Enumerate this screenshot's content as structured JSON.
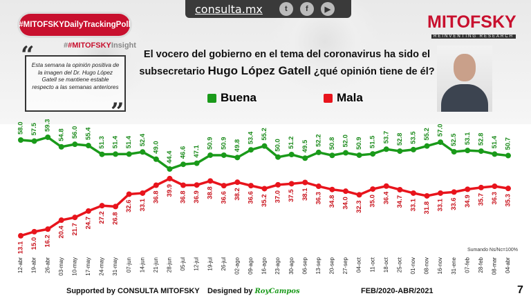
{
  "header": {
    "site": "consulta.mx",
    "social_icons": [
      "twitter-icon",
      "facebook-icon",
      "youtube-icon"
    ],
    "hashtag": "#MITOFSKYDailyTrackingPoll",
    "insight_brand": "#MITOFSKY",
    "insight_suffix": "Insight",
    "logo": "MITOFSKY",
    "logo_tagline": "REINVENTING RESEARCH"
  },
  "quote": "Esta semana la opinión positiva de la imagen del Dr. Hugo López Gatell se mantiene estable respecto a las semanas anteriores",
  "title": {
    "line1": "El vocero del gobierno en el tema del coronavirus ha sido el",
    "line2_pre": "subsecretario ",
    "line2_name": "Hugo López Gatell",
    "line2_post": " ¿qué opinión tiene de él?"
  },
  "note": "Sumando Ns/Nc=100%",
  "footer": {
    "supported": "Supported by  CONSULTA  MITOFSKY",
    "designed": "Designed by",
    "designer": "RoyCampos",
    "period": "FEB/2020-ABR/2021",
    "page": "7"
  },
  "chart_data": {
    "type": "line",
    "categories": [
      "12-abr",
      "19-abr",
      "26-abr",
      "03-may",
      "10-may",
      "17-may",
      "24-may",
      "31-may",
      "07-jun",
      "14-jun",
      "21-jun",
      "28-jun",
      "05-jul",
      "12-jul",
      "19-jul",
      "26-jul",
      "02-ago",
      "09-ago",
      "16-ago",
      "23-ago",
      "30-ago",
      "06-sep",
      "13-sep",
      "20-sep",
      "27-sep",
      "04-oct",
      "11-oct",
      "18-oct",
      "25-oct",
      "01-nov",
      "08-nov",
      "16-nov",
      "31-ene",
      "07-feb",
      "28-feb",
      "08-mar",
      "04-abr"
    ],
    "series": [
      {
        "name": "Buena",
        "color": "#1a9a1a",
        "values": [
          58.0,
          57.5,
          59.3,
          54.8,
          56.0,
          55.4,
          51.3,
          51.4,
          51.4,
          52.4,
          49.0,
          44.4,
          46.6,
          47.1,
          50.9,
          50.9,
          49.8,
          53.4,
          55.2,
          50.0,
          51.2,
          49.5,
          52.2,
          50.8,
          52.0,
          50.9,
          51.5,
          53.7,
          52.8,
          53.5,
          55.2,
          57.0,
          52.5,
          53.1,
          52.8,
          51.4,
          50.7
        ]
      },
      {
        "name": "Mala",
        "color": "#e8141c",
        "values": [
          13.1,
          15.0,
          16.2,
          20.4,
          21.7,
          24.7,
          27.2,
          26.8,
          32.6,
          33.1,
          36.8,
          39.9,
          36.8,
          36.9,
          38.8,
          36.6,
          38.2,
          36.6,
          35.2,
          37.0,
          37.5,
          38.1,
          36.3,
          34.8,
          34.0,
          32.3,
          35.0,
          36.4,
          34.7,
          33.1,
          31.8,
          33.1,
          33.6,
          34.9,
          35.7,
          36.3,
          35.3
        ]
      }
    ],
    "grid": false,
    "legend": "top"
  }
}
